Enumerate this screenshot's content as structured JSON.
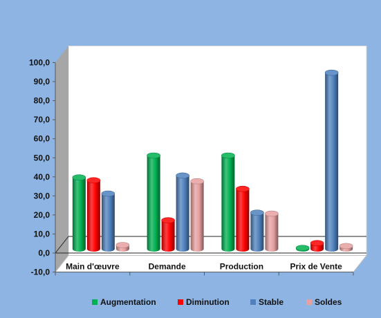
{
  "colors": {
    "background": "#8db4e3",
    "plot_area": "#ffffff",
    "wall_side": "#a6a6a6",
    "floor": "#ffffff",
    "gridline": "#222222"
  },
  "chart_data": {
    "type": "bar",
    "title": "",
    "xlabel": "",
    "ylabel": "",
    "categories": [
      "Main d'œuvre",
      "Demande",
      "Production",
      "Prix de Vente"
    ],
    "series": [
      {
        "name": "Augmentation",
        "color": "#00b050",
        "values": [
          37.5,
          49.0,
          49.0,
          0.5
        ]
      },
      {
        "name": "Diminution",
        "color": "#ff0000",
        "values": [
          36.0,
          15.0,
          31.5,
          3.0
        ]
      },
      {
        "name": "Stable",
        "color": "#4f81bd",
        "values": [
          29.0,
          38.5,
          19.0,
          92.5
        ]
      },
      {
        "name": "Soldes",
        "color": "#e6a0a0",
        "values": [
          2.0,
          35.5,
          18.5,
          1.5
        ]
      }
    ],
    "ylim": [
      -10,
      100
    ],
    "yticks": [
      "-10,0",
      "0,0",
      "10,0",
      "20,0",
      "30,0",
      "40,0",
      "50,0",
      "60,0",
      "70,0",
      "80,0",
      "90,0",
      "100,0"
    ],
    "ytick_values": [
      -10,
      0,
      10,
      20,
      30,
      40,
      50,
      60,
      70,
      80,
      90,
      100
    ],
    "grid": false,
    "legend_position": "bottom"
  }
}
